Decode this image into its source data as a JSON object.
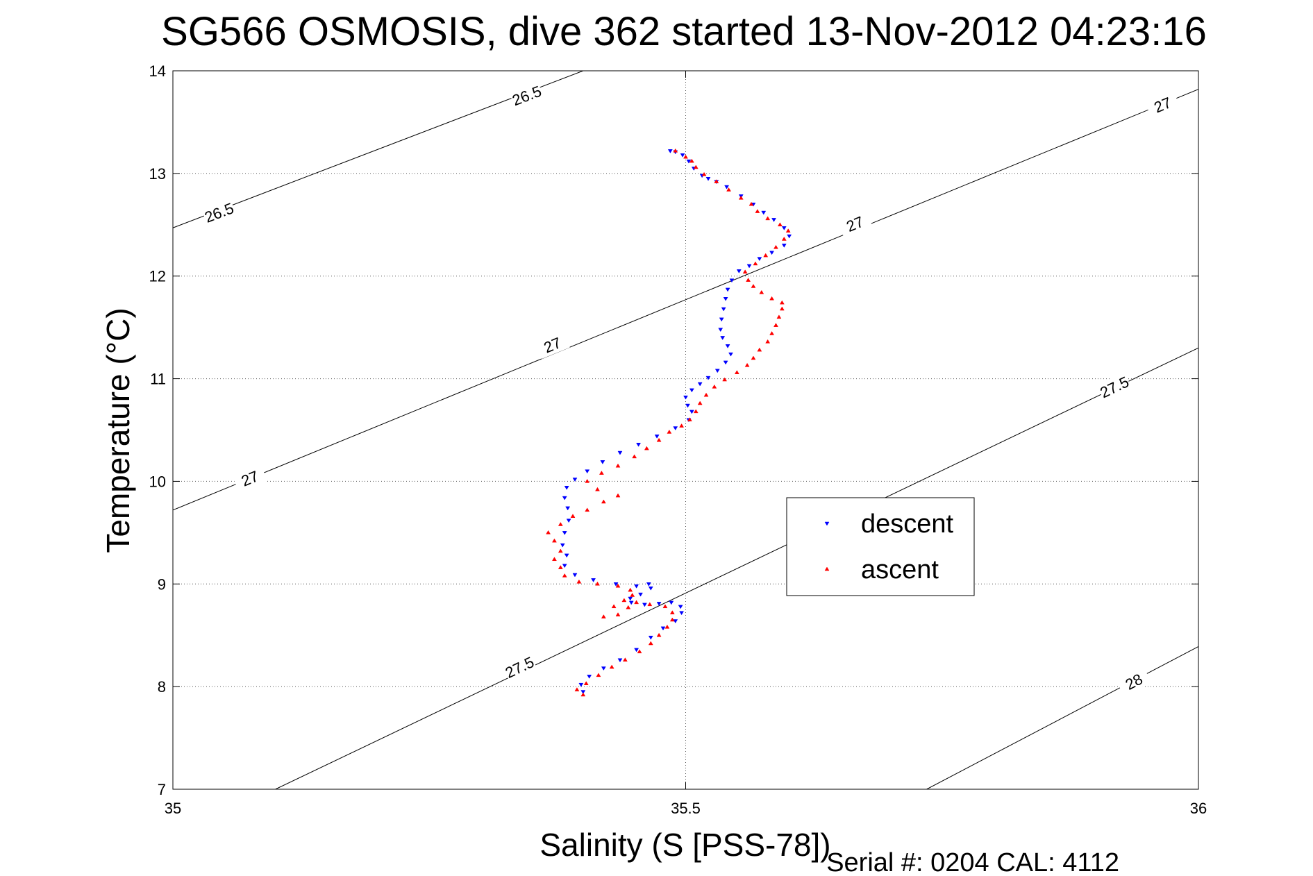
{
  "chart_data": {
    "type": "scatter",
    "title": "SG566 OSMOSIS, dive 362 started 13-Nov-2012 04:23:16",
    "xlabel": "Salinity (S [PSS-78])",
    "ylabel": "Temperature (°C)",
    "xlim": [
      35,
      36
    ],
    "ylim": [
      7,
      14
    ],
    "xticks": [
      {
        "value": 35,
        "label": "35"
      },
      {
        "value": 35.5,
        "label": "35.5"
      },
      {
        "value": 36,
        "label": "36"
      }
    ],
    "yticks": [
      {
        "value": 7,
        "label": "7"
      },
      {
        "value": 8,
        "label": "8"
      },
      {
        "value": 9,
        "label": "9"
      },
      {
        "value": 10,
        "label": "10"
      },
      {
        "value": 11,
        "label": "11"
      },
      {
        "value": 12,
        "label": "12"
      },
      {
        "value": 13,
        "label": "13"
      },
      {
        "value": 14,
        "label": "14"
      }
    ],
    "grid": true,
    "legend_position": "center-right",
    "density_contours": [
      {
        "level": "26.5",
        "points": [
          [
            35,
            12.47
          ],
          [
            35.4,
            14.0
          ]
        ],
        "labels": [
          {
            "text": "26.5",
            "at": [
              35.045,
              12.62
            ]
          },
          {
            "text": "26.5",
            "at": [
              35.345,
              13.76
            ]
          }
        ]
      },
      {
        "level": "27",
        "points": [
          [
            35,
            9.72
          ],
          [
            36,
            13.82
          ]
        ],
        "labels": [
          {
            "text": "27",
            "at": [
              35.075,
              10.03
            ]
          },
          {
            "text": "27",
            "at": [
              35.37,
              11.33
            ]
          },
          {
            "text": "27",
            "at": [
              35.665,
              12.51
            ]
          },
          {
            "text": "27",
            "at": [
              35.965,
              13.67
            ]
          }
        ]
      },
      {
        "level": "27.5",
        "points": [
          [
            35.1,
            7.0
          ],
          [
            36,
            11.3
          ]
        ],
        "labels": [
          {
            "text": "27.5",
            "at": [
              35.338,
              8.19
            ]
          },
          {
            "text": "27.5",
            "at": [
              35.918,
              10.92
            ]
          }
        ]
      },
      {
        "level": "28",
        "points": [
          [
            35.735,
            7.0
          ],
          [
            36,
            8.39
          ]
        ],
        "labels": [
          {
            "text": "28",
            "at": [
              35.937,
              8.05
            ]
          }
        ]
      }
    ],
    "series": [
      {
        "name": "descent",
        "color": "#0000ff",
        "marker": "triangle-down",
        "points": [
          [
            35.485,
            13.22
          ],
          [
            35.49,
            13.21
          ],
          [
            35.497,
            13.18
          ],
          [
            35.503,
            13.12
          ],
          [
            35.508,
            13.05
          ],
          [
            35.516,
            12.98
          ],
          [
            35.522,
            12.95
          ],
          [
            35.53,
            12.92
          ],
          [
            35.54,
            12.87
          ],
          [
            35.554,
            12.78
          ],
          [
            35.566,
            12.7
          ],
          [
            35.576,
            12.62
          ],
          [
            35.586,
            12.55
          ],
          [
            35.596,
            12.47
          ],
          [
            35.601,
            12.39
          ],
          [
            35.596,
            12.3
          ],
          [
            35.584,
            12.23
          ],
          [
            35.572,
            12.17
          ],
          [
            35.562,
            12.1
          ],
          [
            35.552,
            12.05
          ],
          [
            35.545,
            11.96
          ],
          [
            35.541,
            11.87
          ],
          [
            35.539,
            11.78
          ],
          [
            35.537,
            11.68
          ],
          [
            35.535,
            11.58
          ],
          [
            35.534,
            11.48
          ],
          [
            35.536,
            11.4
          ],
          [
            35.541,
            11.32
          ],
          [
            35.544,
            11.24
          ],
          [
            35.539,
            11.16
          ],
          [
            35.531,
            11.08
          ],
          [
            35.522,
            11.01
          ],
          [
            35.514,
            10.95
          ],
          [
            35.506,
            10.89
          ],
          [
            35.5,
            10.82
          ],
          [
            35.502,
            10.74
          ],
          [
            35.506,
            10.68
          ],
          [
            35.503,
            10.6
          ],
          [
            35.49,
            10.52
          ],
          [
            35.472,
            10.44
          ],
          [
            35.454,
            10.36
          ],
          [
            35.436,
            10.28
          ],
          [
            35.419,
            10.19
          ],
          [
            35.404,
            10.1
          ],
          [
            35.392,
            10.02
          ],
          [
            35.384,
            9.94
          ],
          [
            35.382,
            9.84
          ],
          [
            35.385,
            9.74
          ],
          [
            35.386,
            9.62
          ],
          [
            35.382,
            9.5
          ],
          [
            35.38,
            9.38
          ],
          [
            35.384,
            9.28
          ],
          [
            35.382,
            9.18
          ],
          [
            35.392,
            9.09
          ],
          [
            35.41,
            9.04
          ],
          [
            35.432,
            9.0
          ],
          [
            35.452,
            8.98
          ],
          [
            35.464,
            9.0
          ],
          [
            35.466,
            8.96
          ],
          [
            35.456,
            8.9
          ],
          [
            35.446,
            8.86
          ],
          [
            35.447,
            8.82
          ],
          [
            35.46,
            8.8
          ],
          [
            35.474,
            8.81
          ],
          [
            35.486,
            8.82
          ],
          [
            35.495,
            8.78
          ],
          [
            35.496,
            8.72
          ],
          [
            35.49,
            8.64
          ],
          [
            35.478,
            8.57
          ],
          [
            35.466,
            8.48
          ],
          [
            35.452,
            8.36
          ],
          [
            35.436,
            8.26
          ],
          [
            35.42,
            8.18
          ],
          [
            35.406,
            8.1
          ],
          [
            35.398,
            8.02
          ],
          [
            35.4,
            7.95
          ]
        ]
      },
      {
        "name": "ascent",
        "color": "#ff0000",
        "marker": "triangle-up",
        "points": [
          [
            35.4,
            7.92
          ],
          [
            35.394,
            7.97
          ],
          [
            35.403,
            8.03
          ],
          [
            35.415,
            8.11
          ],
          [
            35.428,
            8.19
          ],
          [
            35.441,
            8.26
          ],
          [
            35.455,
            8.34
          ],
          [
            35.466,
            8.42
          ],
          [
            35.474,
            8.5
          ],
          [
            35.482,
            8.58
          ],
          [
            35.487,
            8.65
          ],
          [
            35.487,
            8.72
          ],
          [
            35.48,
            8.78
          ],
          [
            35.465,
            8.8
          ],
          [
            35.452,
            8.82
          ],
          [
            35.444,
            8.77
          ],
          [
            35.434,
            8.7
          ],
          [
            35.42,
            8.68
          ],
          [
            35.43,
            8.78
          ],
          [
            35.44,
            8.84
          ],
          [
            35.448,
            8.89
          ],
          [
            35.446,
            8.94
          ],
          [
            35.434,
            8.98
          ],
          [
            35.414,
            9.0
          ],
          [
            35.396,
            9.02
          ],
          [
            35.382,
            9.08
          ],
          [
            35.378,
            9.16
          ],
          [
            35.372,
            9.24
          ],
          [
            35.378,
            9.32
          ],
          [
            35.372,
            9.42
          ],
          [
            35.366,
            9.5
          ],
          [
            35.378,
            9.58
          ],
          [
            35.39,
            9.66
          ],
          [
            35.404,
            9.72
          ],
          [
            35.42,
            9.8
          ],
          [
            35.434,
            9.86
          ],
          [
            35.414,
            9.92
          ],
          [
            35.404,
            10.0
          ],
          [
            35.418,
            10.08
          ],
          [
            35.434,
            10.15
          ],
          [
            35.45,
            10.24
          ],
          [
            35.462,
            10.32
          ],
          [
            35.474,
            10.4
          ],
          [
            35.484,
            10.48
          ],
          [
            35.496,
            10.54
          ],
          [
            35.504,
            10.6
          ],
          [
            35.51,
            10.68
          ],
          [
            35.514,
            10.76
          ],
          [
            35.52,
            10.84
          ],
          [
            35.528,
            10.92
          ],
          [
            35.538,
            10.99
          ],
          [
            35.55,
            11.06
          ],
          [
            35.56,
            11.13
          ],
          [
            35.566,
            11.2
          ],
          [
            35.572,
            11.28
          ],
          [
            35.58,
            11.36
          ],
          [
            35.584,
            11.44
          ],
          [
            35.588,
            11.52
          ],
          [
            35.591,
            11.6
          ],
          [
            35.594,
            11.68
          ],
          [
            35.594,
            11.74
          ],
          [
            35.584,
            11.78
          ],
          [
            35.574,
            11.84
          ],
          [
            35.566,
            11.9
          ],
          [
            35.561,
            11.96
          ],
          [
            35.558,
            12.04
          ],
          [
            35.568,
            12.12
          ],
          [
            35.578,
            12.2
          ],
          [
            35.588,
            12.28
          ],
          [
            35.596,
            12.36
          ],
          [
            35.6,
            12.44
          ],
          [
            35.592,
            12.5
          ],
          [
            35.58,
            12.56
          ],
          [
            35.57,
            12.63
          ],
          [
            35.564,
            12.7
          ],
          [
            35.554,
            12.76
          ],
          [
            35.542,
            12.84
          ],
          [
            35.53,
            12.92
          ],
          [
            35.518,
            12.99
          ],
          [
            35.51,
            13.06
          ],
          [
            35.506,
            13.12
          ],
          [
            35.5,
            13.16
          ],
          [
            35.49,
            13.22
          ]
        ]
      }
    ]
  },
  "footnote": "Serial #: 0204  CAL: 4112"
}
